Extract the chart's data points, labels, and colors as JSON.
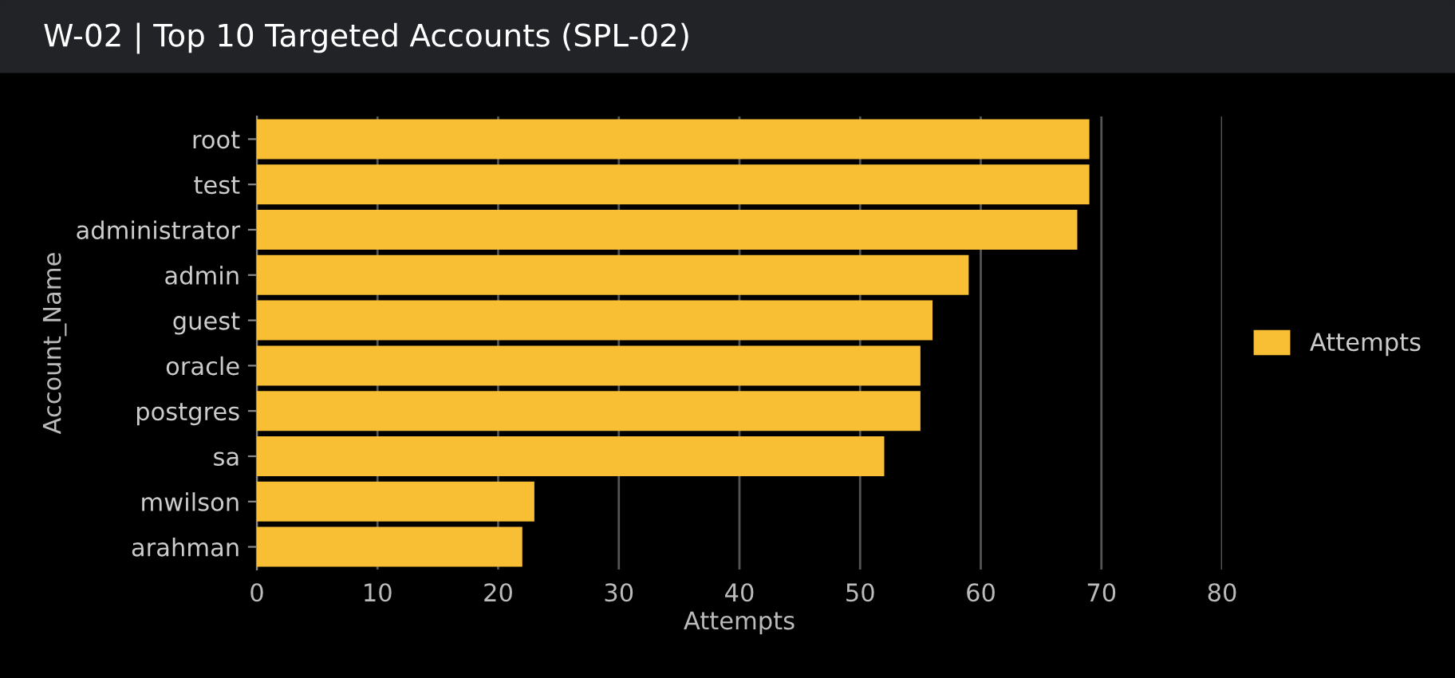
{
  "chart_data": {
    "type": "bar",
    "orientation": "horizontal",
    "title": "W-02 | Top 10 Targeted Accounts (SPL-02)",
    "categories": [
      "root",
      "test",
      "administrator",
      "admin",
      "guest",
      "oracle",
      "postgres",
      "sa",
      "mwilson",
      "arahman"
    ],
    "series": [
      {
        "name": "Attempts",
        "color": "#f8be34",
        "values": [
          69,
          69,
          68,
          59,
          56,
          55,
          55,
          52,
          23,
          22
        ]
      }
    ],
    "xlabel": "Attempts",
    "ylabel": "Account_Name",
    "xlim": [
      0,
      80
    ],
    "xticks": [
      0,
      10,
      20,
      30,
      40,
      50,
      60,
      70,
      80
    ],
    "grid": "x",
    "legend": "right"
  }
}
